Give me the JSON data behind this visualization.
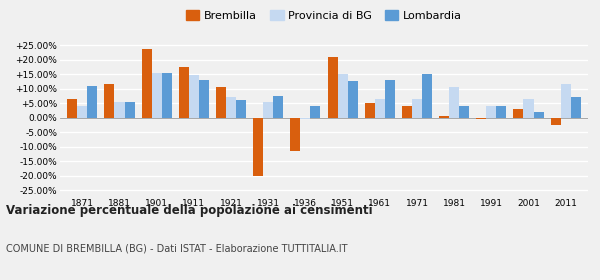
{
  "years": [
    1871,
    1881,
    1901,
    1911,
    1921,
    1931,
    1936,
    1951,
    1961,
    1971,
    1981,
    1991,
    2001,
    2011
  ],
  "brembilla": [
    6.5,
    11.5,
    23.5,
    17.5,
    10.5,
    -20.0,
    -11.5,
    21.0,
    5.0,
    4.0,
    0.5,
    -0.5,
    3.0,
    -2.5
  ],
  "provincia_bg": [
    4.0,
    5.5,
    15.5,
    14.5,
    7.0,
    5.5,
    -0.5,
    15.0,
    6.5,
    6.5,
    10.5,
    4.0,
    6.5,
    11.5
  ],
  "lombardia": [
    11.0,
    5.5,
    15.5,
    13.0,
    6.0,
    7.5,
    4.0,
    12.5,
    13.0,
    15.0,
    4.0,
    4.0,
    2.0,
    7.0
  ],
  "color_brembilla": "#d95f0e",
  "color_provincia": "#c5d9f1",
  "color_lombardia": "#5b9bd5",
  "title": "Variazione percentuale della popolazione ai censimenti",
  "subtitle": "COMUNE DI BREMBILLA (BG) - Dati ISTAT - Elaborazione TUTTITALIA.IT",
  "legend_labels": [
    "Brembilla",
    "Provincia di BG",
    "Lombardia"
  ],
  "ylim": [
    -27,
    27
  ],
  "yticks": [
    -25,
    -20,
    -15,
    -10,
    -5,
    0,
    5,
    10,
    15,
    20,
    25
  ],
  "ytick_labels": [
    "-25.00%",
    "-20.00%",
    "-15.00%",
    "-10.00%",
    "-5.00%",
    "0.00%",
    "+5.00%",
    "+10.00%",
    "+15.00%",
    "+20.00%",
    "+25.00%"
  ],
  "bg_color": "#f0f0f0",
  "grid_color": "#ffffff",
  "bar_width": 0.27
}
